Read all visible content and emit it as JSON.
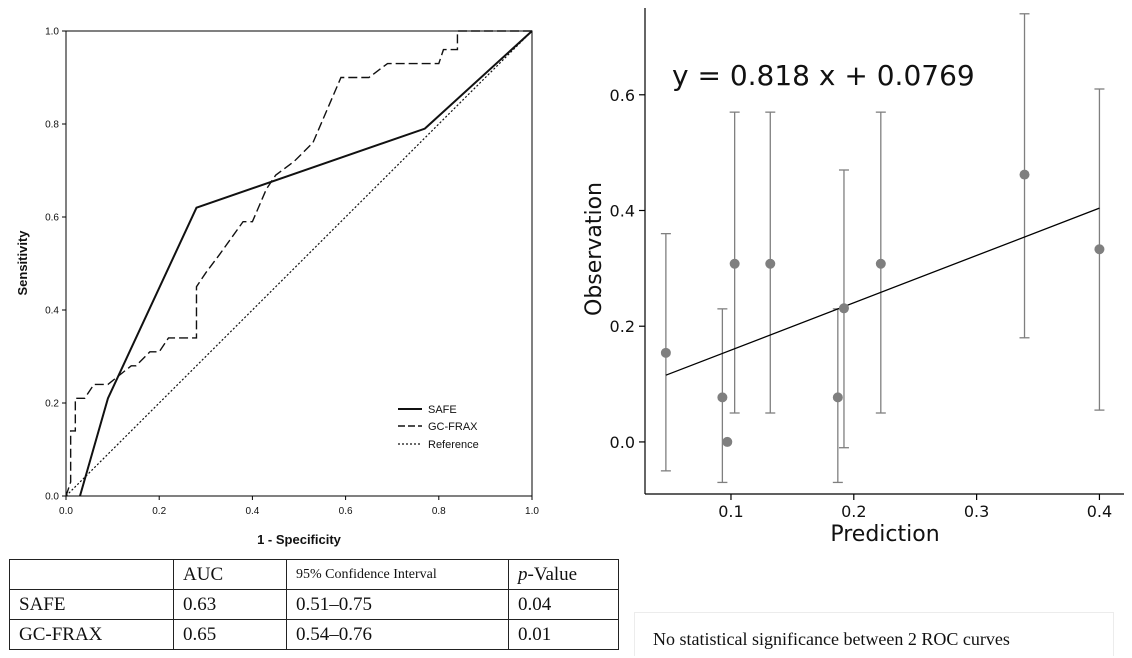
{
  "chart_data": [
    {
      "type": "line",
      "xlabel": "1 - Specificity",
      "ylabel": "Sensitivity",
      "xlim": [
        0.0,
        1.0
      ],
      "ylim": [
        0.0,
        1.0
      ],
      "x_ticks": [
        "0.0",
        "0.2",
        "0.4",
        "0.6",
        "0.8",
        "1.0"
      ],
      "y_ticks": [
        "0.0",
        "0.2",
        "0.4",
        "0.6",
        "0.8",
        "1.0"
      ],
      "legend_position": "bottom-right",
      "series": [
        {
          "name": "SAFE",
          "style": "solid",
          "x": [
            0.03,
            0.09,
            0.28,
            0.77,
            1.0
          ],
          "y": [
            0.0,
            0.21,
            0.62,
            0.79,
            1.0
          ]
        },
        {
          "name": "GC-FRAX",
          "style": "dashed",
          "x": [
            0.0,
            0.01,
            0.01,
            0.02,
            0.02,
            0.04,
            0.06,
            0.09,
            0.14,
            0.15,
            0.18,
            0.2,
            0.22,
            0.25,
            0.28,
            0.28,
            0.3,
            0.33,
            0.38,
            0.4,
            0.43,
            0.45,
            0.49,
            0.53,
            0.56,
            0.59,
            0.61,
            0.63,
            0.65,
            0.69,
            0.71,
            0.77,
            0.8,
            0.81,
            0.84,
            0.84,
            1.0
          ],
          "y": [
            0.0,
            0.03,
            0.14,
            0.14,
            0.21,
            0.21,
            0.24,
            0.24,
            0.28,
            0.28,
            0.31,
            0.31,
            0.34,
            0.34,
            0.34,
            0.45,
            0.48,
            0.52,
            0.59,
            0.59,
            0.66,
            0.69,
            0.72,
            0.76,
            0.83,
            0.9,
            0.9,
            0.9,
            0.9,
            0.93,
            0.93,
            0.93,
            0.93,
            0.96,
            0.96,
            1.0,
            1.0
          ]
        },
        {
          "name": "Reference",
          "style": "dotted",
          "x": [
            0.0,
            1.0
          ],
          "y": [
            0.0,
            1.0
          ]
        }
      ]
    },
    {
      "type": "scatter",
      "xlabel": "Prediction",
      "ylabel": "Observation",
      "annotation": "y = 0.818 x + 0.0769",
      "xlim": [
        0.03,
        0.42
      ],
      "ylim": [
        -0.09,
        0.75
      ],
      "x_ticks": [
        0.1,
        0.2,
        0.3,
        0.4
      ],
      "x_tick_labels": [
        "0.1",
        "0.2",
        "0.3",
        "0.4"
      ],
      "y_ticks": [
        0.0,
        0.2,
        0.4,
        0.6
      ],
      "y_tick_labels": [
        "0.0",
        "0.2",
        "0.4",
        "0.6"
      ],
      "trend_line": {
        "slope": 0.818,
        "intercept": 0.0769,
        "x_range": [
          0.047,
          0.4
        ]
      },
      "points": [
        {
          "x": 0.047,
          "y": 0.154,
          "lo": -0.05,
          "hi": 0.36
        },
        {
          "x": 0.093,
          "y": 0.077,
          "lo": -0.07,
          "hi": 0.23
        },
        {
          "x": 0.097,
          "y": 0.0,
          "lo": null,
          "hi": null
        },
        {
          "x": 0.103,
          "y": 0.308,
          "lo": 0.05,
          "hi": 0.57
        },
        {
          "x": 0.132,
          "y": 0.308,
          "lo": 0.05,
          "hi": 0.57
        },
        {
          "x": 0.187,
          "y": 0.077,
          "lo": -0.07,
          "hi": 0.23
        },
        {
          "x": 0.192,
          "y": 0.231,
          "lo": -0.01,
          "hi": 0.47
        },
        {
          "x": 0.222,
          "y": 0.308,
          "lo": 0.05,
          "hi": 0.57
        },
        {
          "x": 0.339,
          "y": 0.462,
          "lo": 0.18,
          "hi": 0.74
        },
        {
          "x": 0.4,
          "y": 0.333,
          "lo": 0.055,
          "hi": 0.61
        }
      ]
    }
  ],
  "colors": {
    "roc_line": "#111111",
    "calibration_point": "#7f7f7f",
    "calibration_trend": "#000000"
  },
  "table": {
    "headers": [
      "",
      "AUC",
      "95% Confidence Interval",
      "p-Value"
    ],
    "header_pvalue_italic": "p",
    "header_pvalue_rest": "-Value",
    "rows": [
      [
        "SAFE",
        "0.63",
        "0.51–0.75",
        "0.04"
      ],
      [
        "GC-FRAX",
        "0.65",
        "0.54–0.76",
        "0.01"
      ]
    ]
  },
  "note": "No statistical significance between 2 ROC curves"
}
